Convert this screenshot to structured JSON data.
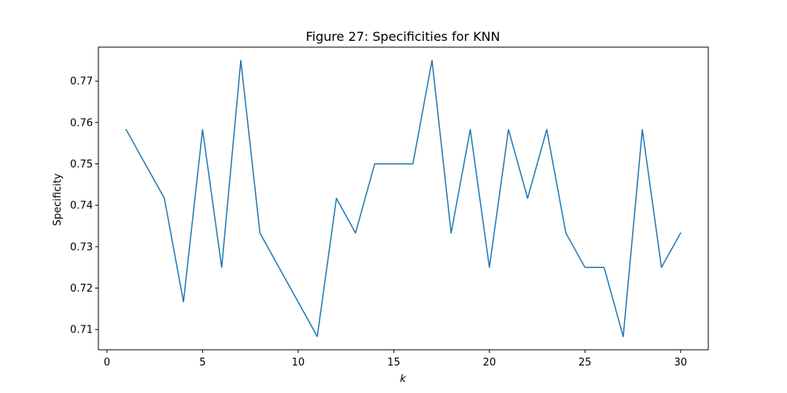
{
  "chart_data": {
    "type": "line",
    "title": "Figure 27: Specificities for KNN",
    "xlabel": "k",
    "ylabel": "Specificity",
    "xlim": [
      -0.45,
      31.45
    ],
    "ylim": [
      0.7051,
      0.7782
    ],
    "xticks": [
      0,
      5,
      10,
      15,
      20,
      25,
      30
    ],
    "xtick_labels": [
      "0",
      "5",
      "10",
      "15",
      "20",
      "25",
      "30"
    ],
    "yticks": [
      0.71,
      0.72,
      0.73,
      0.74,
      0.75,
      0.76,
      0.77
    ],
    "ytick_labels": [
      "0.71",
      "0.72",
      "0.73",
      "0.74",
      "0.75",
      "0.76",
      "0.77"
    ],
    "grid": false,
    "series": [
      {
        "color": "#1f77b4",
        "x": [
          1,
          3,
          4,
          5,
          6,
          7,
          8,
          11,
          12,
          13,
          14,
          15,
          16,
          17,
          18,
          19,
          20,
          21,
          22,
          23,
          24,
          25,
          26,
          27,
          28,
          29,
          30
        ],
        "y": [
          0.7583,
          0.7417,
          0.7167,
          0.7583,
          0.725,
          0.775,
          0.7333,
          0.7083,
          0.7417,
          0.7333,
          0.75,
          0.75,
          0.75,
          0.775,
          0.7333,
          0.7583,
          0.725,
          0.7583,
          0.7417,
          0.7583,
          0.7333,
          0.725,
          0.725,
          0.7083,
          0.7583,
          0.725,
          0.7333
        ]
      }
    ]
  }
}
